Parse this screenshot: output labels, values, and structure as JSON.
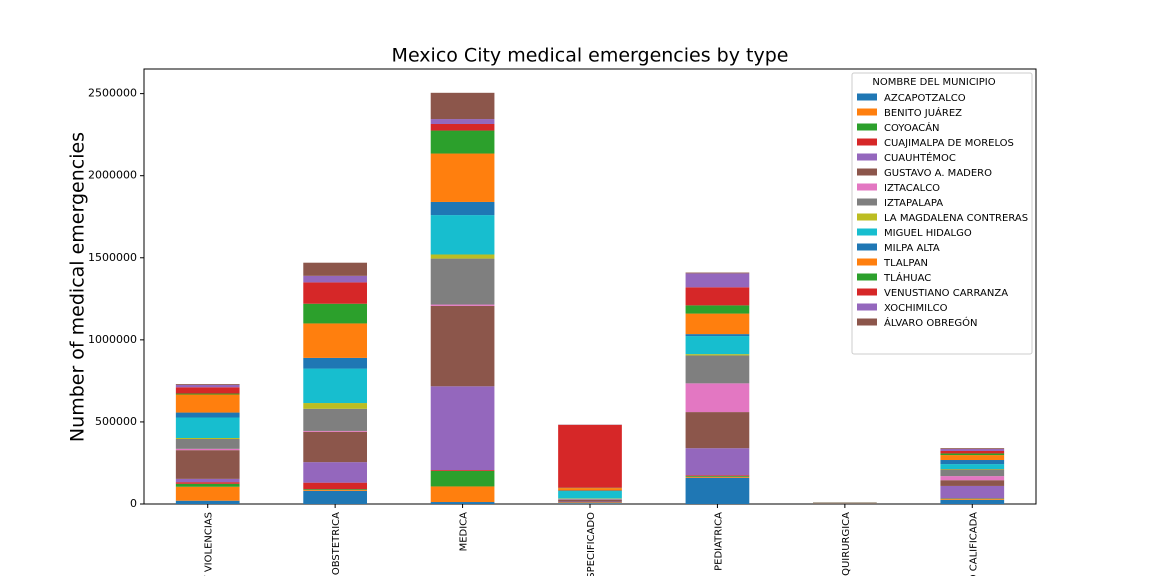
{
  "chart_data": {
    "type": "stacked_bar",
    "title": "Mexico City medical emergencies by type",
    "y_label": "Number of medical emergencies",
    "legend_title": "NOMBRE DEL MUNICIPIO",
    "legend_position": "upper right",
    "categories": [
      "Y VIOLENCIAS",
      "OBSTETRICA",
      "MEDICA",
      "SPECIFICADO",
      "PEDIATRICA",
      "QUIRURGICA",
      "O CALIFICADA"
    ],
    "ylim": [
      0,
      2650000
    ],
    "yticks": [
      0,
      500000,
      1000000,
      1500000,
      2000000,
      2500000
    ],
    "series": [
      {
        "name": "AZCAPOTZALCO",
        "color": "#1f77b4",
        "values": [
          20000,
          80000,
          12000,
          5000,
          160000,
          1000,
          25000
        ]
      },
      {
        "name": "BENITO JUÁREZ",
        "color": "#ff7f0e",
        "values": [
          85000,
          5000,
          95000,
          3000,
          5000,
          1000,
          5000
        ]
      },
      {
        "name": "COYOACÁN",
        "color": "#2ca02c",
        "values": [
          18000,
          5000,
          95000,
          2000,
          5000,
          500,
          3000
        ]
      },
      {
        "name": "CUAJIMALPA DE MORELOS",
        "color": "#d62728",
        "values": [
          10000,
          40000,
          5000,
          2000,
          5000,
          200,
          2000
        ]
      },
      {
        "name": "CUAUHTÉMOC",
        "color": "#9467bd",
        "values": [
          20000,
          125000,
          510000,
          3000,
          165000,
          1000,
          75000
        ]
      },
      {
        "name": "GUSTAVO A. MADERO",
        "color": "#8c564b",
        "values": [
          175000,
          185000,
          490000,
          10000,
          220000,
          1000,
          35000
        ]
      },
      {
        "name": "IZTACALCO",
        "color": "#e377c2",
        "values": [
          8000,
          5000,
          8000,
          2000,
          175000,
          300,
          25000
        ]
      },
      {
        "name": "IZTAPALAPA",
        "color": "#7f7f7f",
        "values": [
          60000,
          135000,
          280000,
          5000,
          170000,
          1000,
          40000
        ]
      },
      {
        "name": "LA MAGDALENA CONTRERAS",
        "color": "#bcbd22",
        "values": [
          6000,
          35000,
          25000,
          2000,
          8000,
          200,
          3000
        ]
      },
      {
        "name": "MIGUEL HIDALGO",
        "color": "#17becf",
        "values": [
          125000,
          210000,
          240000,
          45000,
          110000,
          1500,
          30000
        ]
      },
      {
        "name": "MILPA ALTA",
        "color": "#1f77b4",
        "values": [
          30000,
          65000,
          80000,
          3000,
          12000,
          500,
          25000
        ]
      },
      {
        "name": "TLALPAN",
        "color": "#ff7f0e",
        "values": [
          110000,
          210000,
          295000,
          15000,
          125000,
          1000,
          30000
        ]
      },
      {
        "name": "TLÁHUAC",
        "color": "#2ca02c",
        "values": [
          6000,
          120000,
          140000,
          2000,
          50000,
          300,
          10000
        ]
      },
      {
        "name": "VENUSTIANO CARRANZA",
        "color": "#d62728",
        "values": [
          38000,
          130000,
          40000,
          383000,
          110000,
          500,
          15000
        ]
      },
      {
        "name": "XOCHIMILCO",
        "color": "#9467bd",
        "values": [
          15000,
          40000,
          30000,
          1000,
          85000,
          300,
          12000
        ]
      },
      {
        "name": "ÁLVARO OBREGÓN",
        "color": "#8c564b",
        "values": [
          5000,
          80000,
          160000,
          1000,
          5000,
          700,
          5000
        ]
      }
    ]
  }
}
